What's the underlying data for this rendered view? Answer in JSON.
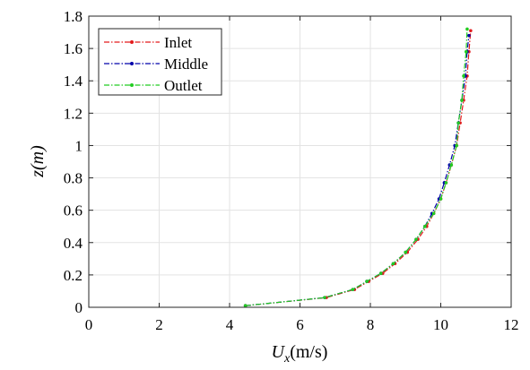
{
  "chart_data": {
    "type": "line",
    "xlabel": "U_x(m/s)",
    "xlabel_main": "U",
    "xlabel_sub": "x",
    "xlabel_units": "(m/s)",
    "ylabel": "z(m)",
    "xlim": [
      0,
      12
    ],
    "ylim": [
      0,
      1.8
    ],
    "xticks": [
      "0",
      "2",
      "4",
      "6",
      "8",
      "10",
      "12"
    ],
    "yticks": [
      "0",
      "0.2",
      "0.4",
      "0.6",
      "0.8",
      "1",
      "1.2",
      "1.4",
      "1.6",
      "1.8"
    ],
    "grid": true,
    "legend_position": "top-left",
    "series": [
      {
        "name": "Inlet",
        "color": "#e31a1c",
        "line_style": "dash-dot",
        "marker": "dot",
        "x": [
          4.45,
          6.75,
          7.55,
          7.95,
          8.35,
          8.7,
          9.05,
          9.35,
          9.6,
          9.8,
          10.0,
          10.15,
          10.3,
          10.45,
          10.55,
          10.65,
          10.75,
          10.8,
          10.85
        ],
        "y": [
          0.01,
          0.06,
          0.11,
          0.16,
          0.21,
          0.27,
          0.34,
          0.42,
          0.5,
          0.58,
          0.67,
          0.77,
          0.88,
          1.0,
          1.14,
          1.28,
          1.43,
          1.58,
          1.71
        ]
      },
      {
        "name": "Middle",
        "color": "#0000aa",
        "line_style": "dash-dot",
        "marker": "dot",
        "x": [
          4.45,
          6.7,
          7.5,
          7.9,
          8.3,
          8.65,
          9.0,
          9.3,
          9.55,
          9.75,
          9.95,
          10.1,
          10.25,
          10.4,
          10.5,
          10.6,
          10.7,
          10.75,
          10.8
        ],
        "y": [
          0.01,
          0.06,
          0.11,
          0.16,
          0.21,
          0.27,
          0.34,
          0.42,
          0.5,
          0.58,
          0.67,
          0.77,
          0.88,
          1.0,
          1.14,
          1.28,
          1.43,
          1.58,
          1.68
        ]
      },
      {
        "name": "Outlet",
        "color": "#22cc22",
        "line_style": "dash-dot",
        "marker": "dot",
        "x": [
          4.45,
          6.7,
          7.5,
          7.9,
          8.3,
          8.65,
          9.0,
          9.3,
          9.55,
          9.8,
          10.0,
          10.15,
          10.3,
          10.45,
          10.5,
          10.6,
          10.65,
          10.72,
          10.75
        ],
        "y": [
          0.01,
          0.06,
          0.11,
          0.16,
          0.21,
          0.27,
          0.34,
          0.42,
          0.5,
          0.58,
          0.67,
          0.77,
          0.88,
          1.0,
          1.14,
          1.28,
          1.43,
          1.58,
          1.72
        ]
      }
    ]
  }
}
